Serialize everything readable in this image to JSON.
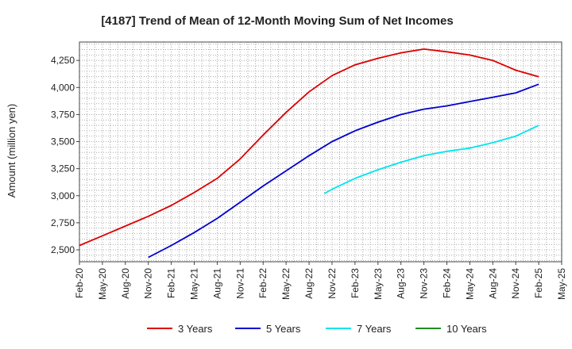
{
  "chart_data": {
    "type": "line",
    "title": "[4187]  Trend of Mean of 12-Month Moving Sum of Net Incomes",
    "xlabel": "",
    "ylabel": "Amount (million yen)",
    "x_ticks": [
      "Feb-20",
      "May-20",
      "Aug-20",
      "Nov-20",
      "Feb-21",
      "May-21",
      "Aug-21",
      "Nov-21",
      "Feb-22",
      "May-22",
      "Aug-22",
      "Nov-22",
      "Feb-23",
      "May-23",
      "Aug-23",
      "Nov-23",
      "Feb-24",
      "May-24",
      "Aug-24",
      "Nov-24",
      "Feb-25",
      "May-25"
    ],
    "y_ticks": [
      2500,
      2750,
      3000,
      3250,
      3500,
      3750,
      4000,
      4250
    ],
    "y_tick_labels": [
      "2,500",
      "2,750",
      "3,000",
      "3,250",
      "3,500",
      "3,750",
      "4,000",
      "4,250"
    ],
    "xlim": [
      "Feb-20",
      "May-25"
    ],
    "ylim": [
      2390,
      4420
    ],
    "grid": true,
    "legend_position": "bottom",
    "series": [
      {
        "name": "3 Years",
        "color": "#dd0000",
        "points": [
          [
            "Feb-20",
            2540
          ],
          [
            "May-20",
            2630
          ],
          [
            "Aug-20",
            2720
          ],
          [
            "Nov-20",
            2810
          ],
          [
            "Feb-21",
            2910
          ],
          [
            "May-21",
            3030
          ],
          [
            "Aug-21",
            3160
          ],
          [
            "Nov-21",
            3340
          ],
          [
            "Feb-22",
            3560
          ],
          [
            "May-22",
            3770
          ],
          [
            "Aug-22",
            3960
          ],
          [
            "Nov-22",
            4110
          ],
          [
            "Feb-23",
            4210
          ],
          [
            "May-23",
            4270
          ],
          [
            "Aug-23",
            4320
          ],
          [
            "Nov-23",
            4355
          ],
          [
            "Feb-24",
            4330
          ],
          [
            "May-24",
            4300
          ],
          [
            "Aug-24",
            4250
          ],
          [
            "Nov-24",
            4160
          ],
          [
            "Feb-25",
            4100
          ]
        ]
      },
      {
        "name": "5 Years",
        "color": "#0000cc",
        "points": [
          [
            "Nov-20",
            2430
          ],
          [
            "Feb-21",
            2540
          ],
          [
            "May-21",
            2660
          ],
          [
            "Aug-21",
            2790
          ],
          [
            "Nov-21",
            2940
          ],
          [
            "Feb-22",
            3090
          ],
          [
            "May-22",
            3230
          ],
          [
            "Aug-22",
            3370
          ],
          [
            "Nov-22",
            3500
          ],
          [
            "Feb-23",
            3600
          ],
          [
            "May-23",
            3680
          ],
          [
            "Aug-23",
            3750
          ],
          [
            "Nov-23",
            3800
          ],
          [
            "Feb-24",
            3830
          ],
          [
            "May-24",
            3870
          ],
          [
            "Aug-24",
            3910
          ],
          [
            "Nov-24",
            3950
          ],
          [
            "Feb-25",
            4030
          ]
        ]
      },
      {
        "name": "7 Years",
        "color": "#00e5ee",
        "points": [
          [
            "Oct-22",
            3020
          ],
          [
            "Nov-22",
            3060
          ],
          [
            "Feb-23",
            3160
          ],
          [
            "May-23",
            3240
          ],
          [
            "Aug-23",
            3310
          ],
          [
            "Nov-23",
            3370
          ],
          [
            "Feb-24",
            3410
          ],
          [
            "May-24",
            3440
          ],
          [
            "Aug-24",
            3490
          ],
          [
            "Nov-24",
            3550
          ],
          [
            "Feb-25",
            3650
          ]
        ]
      },
      {
        "name": "10 Years",
        "color": "#228b22",
        "points": []
      }
    ]
  }
}
